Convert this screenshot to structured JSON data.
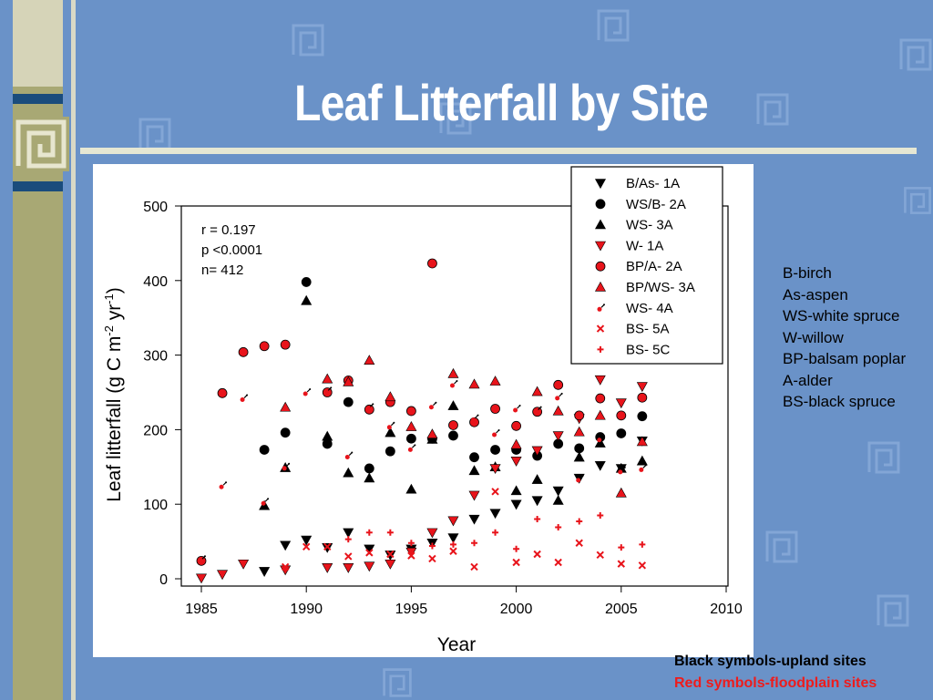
{
  "slide": {
    "title": "Leaf Litterfall by Site",
    "abbreviations": [
      "B-birch",
      "As-aspen",
      "WS-white spruce",
      "W-willow",
      "BP-balsam poplar",
      "A-alder",
      "BS-black spruce"
    ],
    "footnote_upland": "Black symbols-upland sites",
    "footnote_floodplain": "Red symbols-floodplain sites",
    "colors": {
      "background": "#6a92c8",
      "upland": "#000000",
      "floodplain": "#e8141b",
      "accent_olive": "#a8a874",
      "accent_navy": "#1a4c7c"
    }
  },
  "chart_data": {
    "type": "scatter",
    "xlabel": "Year",
    "ylabel": "Leaf litterfall (g C m-2 yr-1)",
    "ylabel_parts": {
      "main": "Leaf litterfall (g C m",
      "sup1": "-2",
      "mid": " yr",
      "sup2": "-1",
      "end": ")"
    },
    "xlim": [
      1985,
      2010
    ],
    "ylim": [
      0,
      500
    ],
    "x_ticks": [
      1985,
      1990,
      1995,
      2000,
      2005,
      2010
    ],
    "y_ticks": [
      0,
      100,
      200,
      300,
      400,
      500
    ],
    "stats": [
      "r = 0.197",
      "p <0.0001",
      "n= 412"
    ],
    "legend_position": "top-right",
    "series": [
      {
        "name": "B/As- 1A",
        "marker": "triangle-down",
        "color": "#000000",
        "points": [
          [
            1988,
            10
          ],
          [
            1989,
            45
          ],
          [
            1990,
            52
          ],
          [
            1991,
            42
          ],
          [
            1992,
            62
          ],
          [
            1993,
            40
          ],
          [
            1994,
            32
          ],
          [
            1995,
            40
          ],
          [
            1996,
            48
          ],
          [
            1997,
            55
          ],
          [
            1998,
            80
          ],
          [
            1999,
            88
          ],
          [
            2000,
            100
          ],
          [
            2001,
            105
          ],
          [
            2002,
            118
          ],
          [
            2003,
            135
          ],
          [
            2004,
            152
          ],
          [
            2005,
            148
          ],
          [
            2006,
            185
          ]
        ]
      },
      {
        "name": "WS/B- 2A",
        "marker": "circle",
        "color": "#000000",
        "points": [
          [
            1988,
            173
          ],
          [
            1989,
            196
          ],
          [
            1990,
            398
          ],
          [
            1991,
            181
          ],
          [
            1992,
            237
          ],
          [
            1993,
            148
          ],
          [
            1994,
            171
          ],
          [
            1995,
            188
          ],
          [
            1996,
            188
          ],
          [
            1997,
            192
          ],
          [
            1998,
            163
          ],
          [
            1999,
            173
          ],
          [
            2000,
            173
          ],
          [
            2001,
            165
          ],
          [
            2002,
            181
          ],
          [
            2003,
            175
          ],
          [
            2004,
            190
          ],
          [
            2005,
            195
          ],
          [
            2006,
            218
          ]
        ]
      },
      {
        "name": "WS- 3A",
        "marker": "triangle-up",
        "color": "#000000",
        "points": [
          [
            1988,
            98
          ],
          [
            1989,
            149
          ],
          [
            1990,
            373
          ],
          [
            1991,
            191
          ],
          [
            1992,
            142
          ],
          [
            1993,
            135
          ],
          [
            1994,
            196
          ],
          [
            1995,
            120
          ],
          [
            1996,
            187
          ],
          [
            1997,
            232
          ],
          [
            1998,
            145
          ],
          [
            1999,
            150
          ],
          [
            2000,
            118
          ],
          [
            2001,
            133
          ],
          [
            2002,
            105
          ],
          [
            2003,
            163
          ],
          [
            2004,
            182
          ],
          [
            2005,
            148
          ],
          [
            2006,
            158
          ]
        ]
      },
      {
        "name": "W- 1A",
        "marker": "triangle-down",
        "color": "#e8141b",
        "points": [
          [
            1985,
            1
          ],
          [
            1986,
            6
          ],
          [
            1987,
            20
          ],
          [
            1989,
            12
          ],
          [
            1991,
            15
          ],
          [
            1992,
            15
          ],
          [
            1993,
            17
          ],
          [
            1994,
            20
          ],
          [
            1995,
            36
          ],
          [
            1996,
            62
          ],
          [
            1997,
            78
          ],
          [
            1998,
            112
          ],
          [
            1999,
            148
          ],
          [
            2000,
            158
          ],
          [
            2001,
            172
          ],
          [
            2002,
            192
          ],
          [
            2003,
            215
          ],
          [
            2004,
            267
          ],
          [
            2005,
            236
          ],
          [
            2006,
            258
          ]
        ]
      },
      {
        "name": "BP/A- 2A",
        "marker": "circle",
        "color": "#e8141b",
        "points": [
          [
            1985,
            24
          ],
          [
            1986,
            249
          ],
          [
            1987,
            304
          ],
          [
            1988,
            312
          ],
          [
            1989,
            314
          ],
          [
            1991,
            250
          ],
          [
            1992,
            266
          ],
          [
            1993,
            227
          ],
          [
            1994,
            237
          ],
          [
            1995,
            225
          ],
          [
            1996,
            423
          ],
          [
            1997,
            206
          ],
          [
            1998,
            210
          ],
          [
            1999,
            228
          ],
          [
            2000,
            205
          ],
          [
            2001,
            224
          ],
          [
            2002,
            260
          ],
          [
            2003,
            219
          ],
          [
            2004,
            242
          ],
          [
            2005,
            219
          ],
          [
            2006,
            243
          ]
        ]
      },
      {
        "name": "BP/WS- 3A",
        "marker": "triangle-up",
        "color": "#e8141b",
        "points": [
          [
            1989,
            230
          ],
          [
            1991,
            268
          ],
          [
            1992,
            264
          ],
          [
            1993,
            293
          ],
          [
            1994,
            244
          ],
          [
            1995,
            204
          ],
          [
            1996,
            194
          ],
          [
            1997,
            275
          ],
          [
            1998,
            261
          ],
          [
            1999,
            265
          ],
          [
            2000,
            180
          ],
          [
            2001,
            251
          ],
          [
            2002,
            225
          ],
          [
            2003,
            197
          ],
          [
            2004,
            219
          ],
          [
            2005,
            115
          ],
          [
            2006,
            184
          ]
        ]
      },
      {
        "name": "WS- 4A",
        "marker": "male",
        "color": "#e8141b",
        "points": [
          [
            1985,
            26
          ],
          [
            1986,
            125
          ],
          [
            1987,
            242
          ],
          [
            1988,
            103
          ],
          [
            1989,
            150
          ],
          [
            1990,
            250
          ],
          [
            1991,
            252
          ],
          [
            1992,
            165
          ],
          [
            1993,
            230
          ],
          [
            1994,
            205
          ],
          [
            1995,
            175
          ],
          [
            1996,
            232
          ],
          [
            1997,
            261
          ],
          [
            1998,
            215
          ],
          [
            1999,
            195
          ],
          [
            2000,
            228
          ],
          [
            2001,
            226
          ],
          [
            2002,
            244
          ],
          [
            2003,
            134
          ],
          [
            2004,
            188
          ],
          [
            2005,
            145
          ],
          [
            2006,
            148
          ]
        ]
      },
      {
        "name": "BS- 5A",
        "marker": "x",
        "color": "#e8141b",
        "points": [
          [
            1989,
            16
          ],
          [
            1990,
            43
          ],
          [
            1991,
            43
          ],
          [
            1992,
            30
          ],
          [
            1993,
            35
          ],
          [
            1994,
            33
          ],
          [
            1995,
            31
          ],
          [
            1996,
            27
          ],
          [
            1997,
            37
          ],
          [
            1998,
            16
          ],
          [
            1999,
            117
          ],
          [
            2000,
            22
          ],
          [
            2001,
            33
          ],
          [
            2002,
            22
          ],
          [
            2003,
            48
          ],
          [
            2004,
            32
          ],
          [
            2005,
            20
          ],
          [
            2006,
            18
          ]
        ]
      },
      {
        "name": "BS- 5C",
        "marker": "plus",
        "color": "#e8141b",
        "points": [
          [
            1992,
            53
          ],
          [
            1993,
            62
          ],
          [
            1994,
            62
          ],
          [
            1995,
            48
          ],
          [
            1996,
            44
          ],
          [
            1997,
            46
          ],
          [
            1998,
            48
          ],
          [
            1999,
            62
          ],
          [
            2000,
            40
          ],
          [
            2001,
            80
          ],
          [
            2002,
            69
          ],
          [
            2003,
            77
          ],
          [
            2004,
            85
          ],
          [
            2005,
            42
          ],
          [
            2006,
            46
          ]
        ]
      }
    ]
  }
}
